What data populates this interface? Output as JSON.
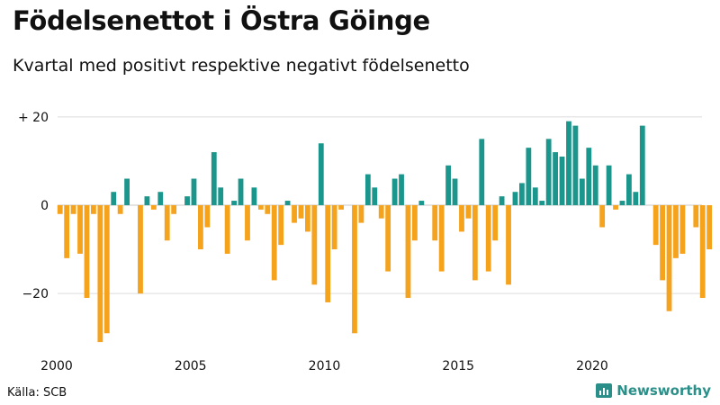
{
  "header": {
    "title": "Födelsenettot i Östra Göinge",
    "subtitle": "Kvartal med positivt respektive negativt födelsenetto"
  },
  "footer": {
    "source": "Källa: SCB",
    "brand": "Newsworthy",
    "brand_icon": "bar-chart-icon"
  },
  "colors": {
    "positive": "#1b968c",
    "negative": "#f5a21c",
    "grid": "#dcdcdc",
    "text": "#111111"
  },
  "chart_data": {
    "type": "bar",
    "start": "2000 Q1",
    "x_ticks": [
      2000,
      2005,
      2010,
      2015,
      2020
    ],
    "y_ticks": [
      {
        "value": 20,
        "label": "+ 20"
      },
      {
        "value": 0,
        "label": "0"
      },
      {
        "value": -20,
        "label": "−20"
      }
    ],
    "ylim": [
      -32,
      22
    ],
    "grid": true,
    "values": [
      -2,
      -12,
      -2,
      -11,
      -21,
      -2,
      -31,
      -29,
      3,
      -2,
      6,
      0,
      -20,
      2,
      -1,
      3,
      -8,
      -2,
      0,
      2,
      6,
      -10,
      -5,
      12,
      4,
      -11,
      1,
      6,
      -8,
      4,
      -1,
      -2,
      -17,
      -9,
      1,
      -4,
      -3,
      -6,
      -18,
      14,
      -22,
      -10,
      -1,
      0,
      -29,
      -4,
      7,
      4,
      -3,
      -15,
      6,
      7,
      -21,
      -8,
      1,
      0,
      -8,
      -15,
      9,
      6,
      -6,
      -3,
      -17,
      15,
      -15,
      -8,
      2,
      -18,
      3,
      5,
      13,
      4,
      1,
      15,
      12,
      11,
      19,
      18,
      6,
      13,
      9,
      -5,
      9,
      -1,
      1,
      7,
      3,
      18,
      0,
      -9,
      -17,
      -24,
      -12,
      -11,
      0,
      -5,
      -21,
      -10
    ]
  }
}
